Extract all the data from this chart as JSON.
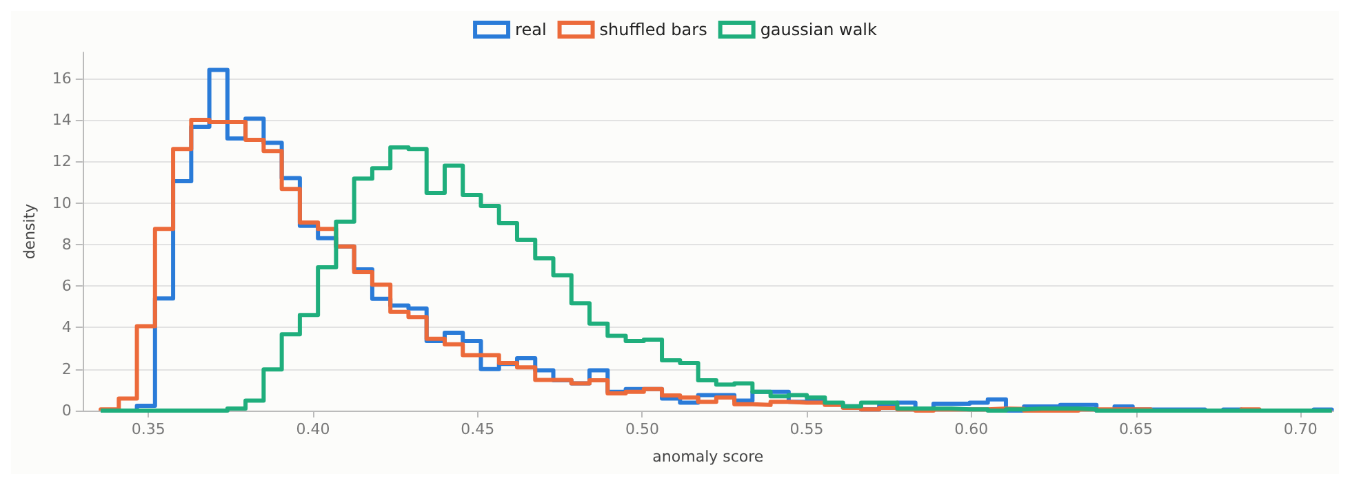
{
  "chart_data": {
    "type": "histogram",
    "xlabel": "anomaly score",
    "ylabel": "density",
    "bins": [
      0.3355,
      0.341,
      0.3465,
      0.352,
      0.3575,
      0.363,
      0.3685,
      0.374,
      0.3795,
      0.385,
      0.3905,
      0.396,
      0.4015,
      0.407,
      0.4125,
      0.418,
      0.4235,
      0.429,
      0.4345,
      0.44,
      0.4455,
      0.451,
      0.4565,
      0.462,
      0.4675,
      0.473,
      0.4785,
      0.484,
      0.4895,
      0.495,
      0.5005,
      0.506,
      0.5115,
      0.517,
      0.5225,
      0.528,
      0.5335,
      0.539,
      0.5445,
      0.55,
      0.5555,
      0.561,
      0.5665,
      0.572,
      0.5775,
      0.583,
      0.5885,
      0.594,
      0.5995,
      0.605,
      0.6105,
      0.616,
      0.6215,
      0.627,
      0.6325,
      0.638,
      0.6435,
      0.649,
      0.6545,
      0.66,
      0.6655,
      0.671,
      0.6765,
      0.682,
      0.6875,
      0.693,
      0.6985,
      0.704,
      0.7095
    ],
    "series": [
      {
        "name": "real",
        "color": "#2a7bd8",
        "values": [
          0,
          0,
          0.23,
          5.4,
          11.05,
          13.67,
          16.4,
          13.1,
          14.06,
          12.9,
          11.2,
          8.9,
          8.3,
          7.9,
          6.8,
          5.38,
          5.06,
          4.92,
          3.35,
          3.75,
          3.35,
          2.0,
          2.25,
          2.52,
          1.94,
          1.46,
          1.31,
          1.94,
          0.9,
          1.04,
          1.04,
          0.58,
          0.38,
          0.75,
          0.75,
          0.48,
          0.9,
          0.9,
          0.42,
          0.48,
          0.33,
          0.21,
          0.06,
          0.33,
          0.38,
          0.06,
          0.33,
          0.33,
          0.38,
          0.54,
          0,
          0.2,
          0.2,
          0.27,
          0.27,
          0,
          0.2,
          0.05,
          0.05,
          0.05,
          0.05,
          0,
          0.05,
          0,
          0,
          0,
          0,
          0.05
        ]
      },
      {
        "name": "shuffled bars",
        "color": "#ec6a3a",
        "values": [
          0.06,
          0.58,
          4.06,
          8.75,
          12.6,
          14.0,
          13.9,
          13.9,
          13.04,
          12.5,
          10.67,
          9.06,
          8.75,
          7.9,
          6.67,
          6.06,
          4.75,
          4.5,
          3.46,
          3.19,
          2.67,
          2.67,
          2.29,
          2.08,
          1.48,
          1.48,
          1.31,
          1.46,
          0.83,
          0.9,
          1.04,
          0.73,
          0.63,
          0.42,
          0.63,
          0.31,
          0.27,
          0.42,
          0.38,
          0.38,
          0.27,
          0.13,
          0.06,
          0.13,
          0.06,
          0,
          0.06,
          0.06,
          0.06,
          0.1,
          0.08,
          0,
          0,
          0,
          0.06,
          0.06,
          0.06,
          0.06,
          0,
          0,
          0,
          0,
          0,
          0.06,
          0,
          0,
          0,
          0
        ]
      },
      {
        "name": "gaussian walk",
        "color": "#1fae7c",
        "values": [
          0,
          0,
          0,
          0,
          0,
          0,
          0,
          0.1,
          0.48,
          1.98,
          3.67,
          4.6,
          6.9,
          9.1,
          11.17,
          11.67,
          12.67,
          12.6,
          10.48,
          11.79,
          10.38,
          9.85,
          9.02,
          8.23,
          7.33,
          6.52,
          5.17,
          4.19,
          3.6,
          3.35,
          3.42,
          2.42,
          2.29,
          1.46,
          1.25,
          1.31,
          0.9,
          0.69,
          0.75,
          0.63,
          0.38,
          0.21,
          0.38,
          0.38,
          0.1,
          0.1,
          0.1,
          0.06,
          0.06,
          0,
          0.06,
          0.1,
          0.1,
          0.1,
          0.06,
          0,
          0,
          0,
          0,
          0,
          0,
          0,
          0,
          0,
          0,
          0,
          0,
          0
        ]
      }
    ],
    "xlim": [
      0.33,
      0.71
    ],
    "xticks": [
      {
        "value": 0.35,
        "label": "0.35"
      },
      {
        "value": 0.4,
        "label": "0.40"
      },
      {
        "value": 0.45,
        "label": "0.45"
      },
      {
        "value": 0.5,
        "label": "0.50"
      },
      {
        "value": 0.55,
        "label": "0.55"
      },
      {
        "value": 0.6,
        "label": "0.60"
      },
      {
        "value": 0.65,
        "label": "0.65"
      },
      {
        "value": 0.7,
        "label": "0.70"
      }
    ],
    "ylim": [
      0,
      17.25
    ],
    "yticks": [
      0,
      2,
      4,
      6,
      8,
      10,
      12,
      14,
      16
    ],
    "grid": "y",
    "legend": "top"
  }
}
